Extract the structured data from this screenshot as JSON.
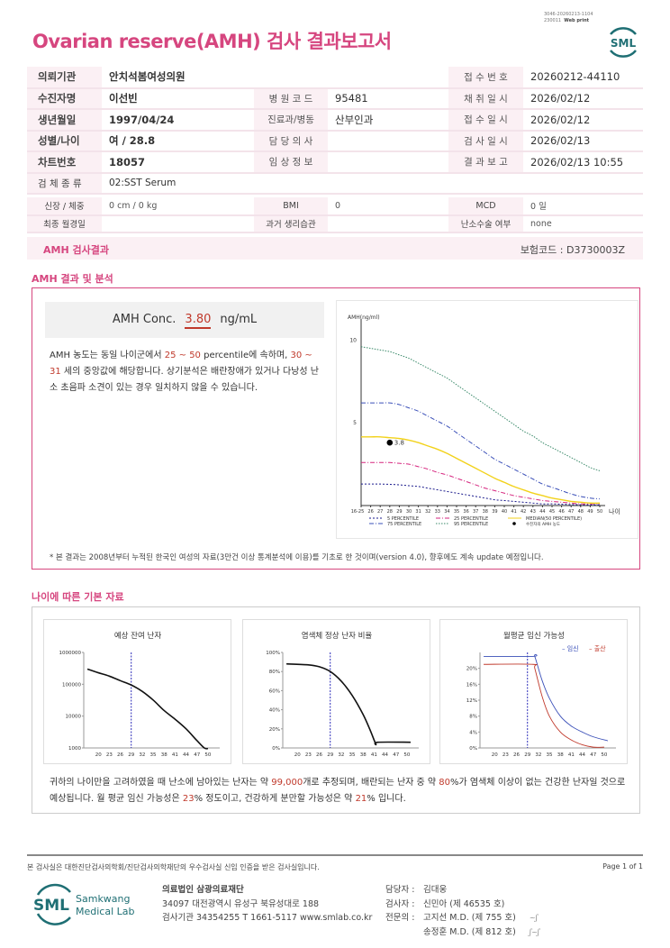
{
  "header": {
    "title": "Ovarian reserve(AMH) 검사 결과보고서",
    "meta_line1": "3046-20260213-1104",
    "meta_line2_code": "230011",
    "meta_line2_label": "Web print",
    "logo_text": "SML"
  },
  "info": {
    "rows": [
      [
        {
          "label": "의뢰기관",
          "value": "안치석봄여성의원"
        },
        {
          "label": "",
          "value": ""
        },
        {
          "label": "접 수 번 호",
          "value": "20260212-44110"
        }
      ],
      [
        {
          "label": "수진자명",
          "value": "이선빈"
        },
        {
          "label": "병 원 코 드",
          "value": "95481"
        },
        {
          "label": "채 취 일 시",
          "value": "2026/02/12"
        }
      ],
      [
        {
          "label": "생년월일",
          "value": "1997/04/24"
        },
        {
          "label": "진료과/병동",
          "value": "산부인과"
        },
        {
          "label": "접 수 일 시",
          "value": "2026/02/12"
        }
      ],
      [
        {
          "label": "성별/나이",
          "value": "여 / 28.8"
        },
        {
          "label": "담 당 의 사",
          "value": ""
        },
        {
          "label": "검 사 일 시",
          "value": "2026/02/13"
        }
      ],
      [
        {
          "label": "차트번호",
          "value": "18057"
        },
        {
          "label": "임 상 정 보",
          "value": ""
        },
        {
          "label": "결 과 보 고",
          "value": "2026/02/13 10:55"
        }
      ]
    ],
    "specimen_label": "검 체 종 류",
    "specimen_value": "02:SST Serum",
    "extra": [
      [
        {
          "label": "신장 / 체중",
          "value": "0 cm / 0 kg"
        },
        {
          "label": "BMI",
          "value": "0"
        },
        {
          "label": "MCD",
          "value": "0 일"
        }
      ],
      [
        {
          "label": "최종 월경일",
          "value": ""
        },
        {
          "label": "과거 생리습관",
          "value": ""
        },
        {
          "label": "난소수술 여부",
          "value": "none"
        }
      ]
    ]
  },
  "result_bar": {
    "title": "AMH 검사결과",
    "insurance_code": "보험코드 : D3730003Z"
  },
  "analysis": {
    "section_title": "AMH 결과 및 분석",
    "conc_label": "AMH Conc.",
    "conc_value": "3.80",
    "conc_unit": "ng/mL",
    "desc": {
      "p1": "AMH 농도는 동일 나이군에서 ",
      "pct_low": "25",
      "tilde1": " ~ ",
      "pct_high": "50",
      "p2": " percentile에 속하며, ",
      "age_low": "30",
      "tilde2": " ~ ",
      "age_high": "31",
      "p3": " 세의 중앙값에 해당합니다. 상기분석은 배란장애가 있거나 다낭성 난소 초음파 소견이 있는 경우 일치하지 않을 수 있습니다."
    },
    "footnote": "* 본 결과는 2008년부터 누적된 한국인 여성의 자료(3만건 이상 통계분석에 이용)를 기초로 한 것이며(version 4.0), 향후에도 계속 update 예정입니다."
  },
  "chart_data": [
    {
      "type": "line",
      "title": "",
      "ylabel": "AMH(ng/ml)",
      "xlabel": "나이",
      "ylim": [
        0,
        11
      ],
      "yticks": [
        5,
        10
      ],
      "categories": [
        "16-25",
        "26",
        "27",
        "28",
        "29",
        "30",
        "31",
        "32",
        "33",
        "34",
        "35",
        "36",
        "37",
        "38",
        "39",
        "40",
        "41",
        "42",
        "43",
        "44",
        "45",
        "46",
        "47",
        "48",
        "49",
        "50"
      ],
      "series": [
        {
          "name": "5 PERCENTILE",
          "color": "#1a1a8c",
          "dash": "2,2",
          "values": [
            1.3,
            1.3,
            1.3,
            1.28,
            1.25,
            1.2,
            1.15,
            1.05,
            0.95,
            0.85,
            0.75,
            0.65,
            0.55,
            0.45,
            0.35,
            0.3,
            0.25,
            0.2,
            0.15,
            0.1,
            0.1,
            0.08,
            0.06,
            0.05,
            0.05,
            0.05
          ]
        },
        {
          "name": "25 PERCENTILE",
          "color": "#d6267f",
          "dash": "5,2,1,2",
          "values": [
            2.6,
            2.6,
            2.6,
            2.6,
            2.55,
            2.5,
            2.35,
            2.2,
            2.0,
            1.85,
            1.65,
            1.45,
            1.25,
            1.05,
            0.9,
            0.75,
            0.6,
            0.5,
            0.4,
            0.3,
            0.25,
            0.2,
            0.15,
            0.1,
            0.1,
            0.1
          ]
        },
        {
          "name": "MEDIAN(50 PERCENTILE)",
          "color": "#f2d21b",
          "dash": "",
          "values": [
            4.15,
            4.15,
            4.15,
            4.1,
            4.05,
            3.95,
            3.8,
            3.6,
            3.4,
            3.15,
            2.85,
            2.55,
            2.25,
            1.95,
            1.65,
            1.4,
            1.15,
            0.95,
            0.75,
            0.6,
            0.45,
            0.35,
            0.25,
            0.2,
            0.15,
            0.15
          ]
        },
        {
          "name": "75 PERCENTILE",
          "color": "#3a4fb8",
          "dash": "5,2,1,2",
          "values": [
            6.2,
            6.2,
            6.2,
            6.2,
            6.1,
            5.9,
            5.7,
            5.4,
            5.1,
            4.8,
            4.4,
            4.0,
            3.6,
            3.2,
            2.8,
            2.5,
            2.2,
            1.9,
            1.6,
            1.3,
            1.1,
            0.9,
            0.7,
            0.55,
            0.45,
            0.4
          ]
        },
        {
          "name": "95 PERCENTILE",
          "color": "#3a8a6a",
          "dash": "1.5,1.5",
          "values": [
            9.6,
            9.5,
            9.4,
            9.3,
            9.1,
            8.9,
            8.6,
            8.3,
            8.0,
            7.7,
            7.3,
            6.9,
            6.5,
            6.1,
            5.7,
            5.3,
            4.9,
            4.5,
            4.2,
            3.8,
            3.5,
            3.2,
            2.9,
            2.6,
            2.3,
            2.1
          ]
        }
      ],
      "patient": {
        "name": "수진자의 AMH 농도",
        "category": "28",
        "value": 3.8,
        "label": "3.8"
      }
    },
    {
      "type": "line",
      "title": "예상 잔여 난자",
      "yscale": "log",
      "ylim": [
        1000,
        1000000
      ],
      "yticks": [
        "1000",
        "10000",
        "100000",
        "1000000"
      ],
      "xlim": [
        16,
        52
      ],
      "xticks": [
        20,
        23,
        26,
        29,
        32,
        35,
        38,
        41,
        44,
        47,
        50
      ],
      "marker_age": 29,
      "series": [
        {
          "name": "잔여 난자",
          "color": "#111",
          "points": [
            [
              17,
              300000
            ],
            [
              20,
              230000
            ],
            [
              23,
              180000
            ],
            [
              26,
              130000
            ],
            [
              29,
              95000
            ],
            [
              32,
              60000
            ],
            [
              35,
              32000
            ],
            [
              38,
              15000
            ],
            [
              41,
              8000
            ],
            [
              44,
              4000
            ],
            [
              47,
              1700
            ],
            [
              49,
              1000
            ],
            [
              50,
              950
            ]
          ]
        }
      ]
    },
    {
      "type": "line",
      "title": "염색체 정상 난자 비율",
      "ylim": [
        0,
        100
      ],
      "yticks": [
        "0%",
        "20%",
        "40%",
        "60%",
        "80%",
        "100%"
      ],
      "xlim": [
        16,
        52
      ],
      "xticks": [
        20,
        23,
        26,
        29,
        32,
        35,
        38,
        41,
        44,
        47,
        50
      ],
      "marker_age": 29,
      "series": [
        {
          "name": "정상 비율",
          "color": "#111",
          "points": [
            [
              17,
              88
            ],
            [
              23,
              87
            ],
            [
              26,
              85
            ],
            [
              29,
              80
            ],
            [
              32,
              70
            ],
            [
              35,
              55
            ],
            [
              38,
              35
            ],
            [
              40,
              18
            ],
            [
              41.5,
              4
            ],
            [
              42,
              6
            ],
            [
              51,
              6
            ]
          ]
        }
      ]
    },
    {
      "type": "line",
      "title": "월평균 임신 가능성",
      "ylim": [
        0,
        24
      ],
      "yticks": [
        "0%",
        "4%",
        "8%",
        "12%",
        "16%",
        "20%"
      ],
      "xlim": [
        16,
        52
      ],
      "xticks": [
        20,
        23,
        26,
        29,
        32,
        35,
        38,
        41,
        44,
        47,
        50
      ],
      "marker_age": 29,
      "legend": [
        "임신",
        "출산"
      ],
      "series": [
        {
          "name": "임신",
          "color": "#3a4fb8",
          "points": [
            [
              17,
              23
            ],
            [
              30.5,
              23
            ],
            [
              31,
              23
            ],
            [
              33,
              17
            ],
            [
              35,
              12.5
            ],
            [
              38,
              8
            ],
            [
              41,
              5.5
            ],
            [
              44,
              4
            ],
            [
              47,
              2.8
            ],
            [
              51,
              1.8
            ]
          ]
        },
        {
          "name": "출산",
          "color": "#c0392b",
          "points": [
            [
              17,
              21
            ],
            [
              30.5,
              21
            ],
            [
              31,
              20
            ],
            [
              33,
              13
            ],
            [
              35,
              8
            ],
            [
              38,
              4
            ],
            [
              41,
              2
            ],
            [
              44,
              0.8
            ],
            [
              47,
              0.2
            ],
            [
              50,
              0.2
            ]
          ]
        }
      ]
    }
  ],
  "basic": {
    "section_title": "나이에 따른 기본 자료",
    "para": {
      "p1": "귀하의 나이만을 고려하였을 때 난소에 남아있는 난자는 약 ",
      "eggs": "99,000",
      "p2": "개로 추정되며, 배란되는 난자 중 약 ",
      "normal": "80",
      "p3": "%가 염색체 이상이 없는 건강한 난자일 것으로 예상됩니다. 월 평균 임신 가능성은 ",
      "preg": "23",
      "p4": "% 정도이고, 건강하게 분만할 가능성은 약 ",
      "birth": "21",
      "p5": "% 입니다."
    }
  },
  "footer": {
    "cert": "본 검사실은 대한진단검사의학회/진단검사의학재단의 우수검사실 신임 인증을 받은 검사실입니다.",
    "page": "Page 1 of 1",
    "logo_sml": "SML",
    "logo_name1": "Samkwang",
    "logo_name2": "Medical Lab",
    "org_name": "의료법인 삼광의료재단",
    "address": "34097 대전광역시 유성구 북유성대로 188",
    "contact": "검사기관 34354255  T 1661-5117  www.smlab.co.kr",
    "staff": [
      {
        "role": "담당자 :",
        "name": "김대웅"
      },
      {
        "role": "검사자 :",
        "name": "신민아 (제 46535 호)"
      },
      {
        "role": "전문의 :",
        "name": "고지선 M.D. (제 755 호)"
      },
      {
        "role": "",
        "name": "송정훈 M.D. (제 812 호)"
      }
    ]
  },
  "colors": {
    "accent": "#d6467f",
    "highlight": "#c0392b",
    "teal": "#1f6f74"
  }
}
